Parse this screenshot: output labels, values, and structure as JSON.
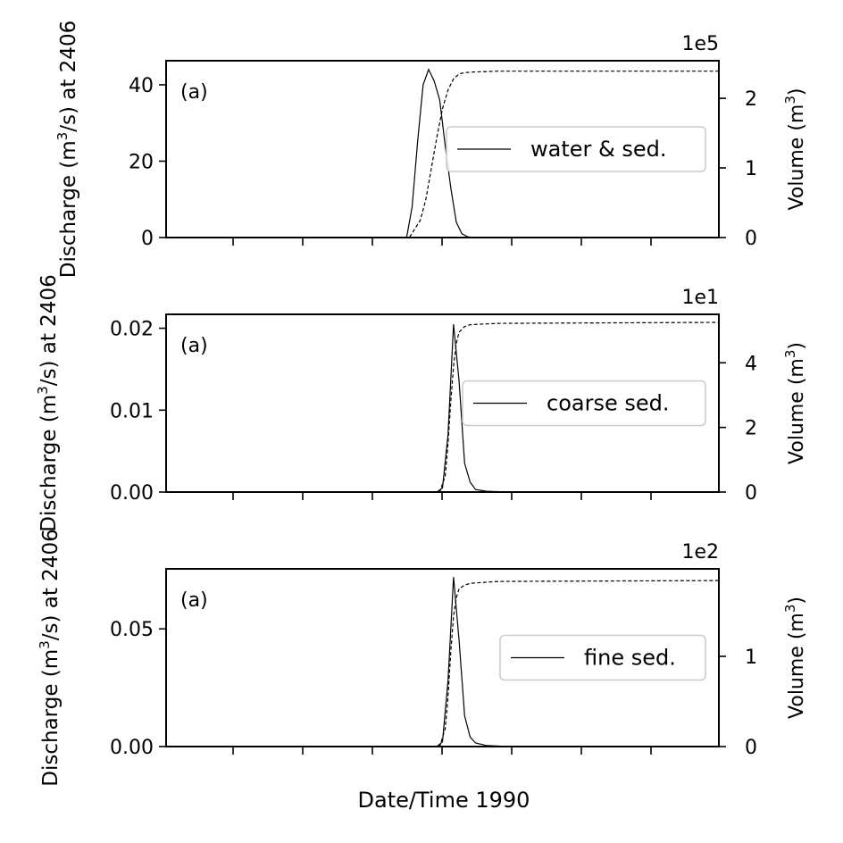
{
  "chart_data": [
    {
      "type": "line",
      "panel_label": "(a)",
      "ylabel": "Discharge (m³/s) at 2406",
      "ylabel_parts": [
        "Discharge (m",
        "3",
        "/s) at 2406"
      ],
      "y2label": "Volume (m³)",
      "y2label_parts": [
        "Volume (m",
        "3",
        ")"
      ],
      "ylim": [
        0,
        46.3
      ],
      "yticks": [
        0,
        20,
        40
      ],
      "ytick_labels": [
        "0",
        "20",
        "40"
      ],
      "y2lim": [
        0,
        2.54
      ],
      "y2ticks": [
        0,
        1,
        2
      ],
      "y2tick_labels": [
        "0",
        "1",
        "2"
      ],
      "y2_offset_label": "1e5",
      "legend": "water & sed.",
      "legend_position": "center-right",
      "series": [
        {
          "name": "water & sed.",
          "axis": "left",
          "style": "solid",
          "x": [
            0,
            0.435,
            0.445,
            0.455,
            0.465,
            0.475,
            0.485,
            0.495,
            0.505,
            0.515,
            0.525,
            0.535,
            0.545,
            0.555,
            0.565,
            1
          ],
          "y": [
            0,
            0,
            8,
            25,
            40,
            44,
            41,
            36,
            24,
            13,
            4,
            1,
            0.2,
            0,
            0,
            0
          ]
        },
        {
          "axis": "right",
          "style": "dashed",
          "x": [
            0,
            0.44,
            0.46,
            0.47,
            0.48,
            0.49,
            0.5,
            0.51,
            0.52,
            0.53,
            0.54,
            0.56,
            0.6,
            1
          ],
          "y": [
            0,
            0,
            0.25,
            0.55,
            1.0,
            1.45,
            1.85,
            2.12,
            2.28,
            2.35,
            2.37,
            2.38,
            2.39,
            2.39
          ]
        }
      ]
    },
    {
      "type": "line",
      "panel_label": "(a)",
      "ylabel": "Discharge (m³/s) at 2406",
      "ylabel_parts": [
        "Discharge (m",
        "3",
        "/s) at 2406"
      ],
      "y2label": "Volume (m³)",
      "y2label_parts": [
        "Volume (m",
        "3",
        ")"
      ],
      "ylim": [
        0,
        0.0217
      ],
      "yticks": [
        0,
        0.01,
        0.02
      ],
      "ytick_labels": [
        "0.00",
        "0.01",
        "0.02"
      ],
      "y2lim": [
        0,
        5.5
      ],
      "y2ticks": [
        0,
        2,
        4
      ],
      "y2tick_labels": [
        "0",
        "2",
        "4"
      ],
      "y2_offset_label": "1e1",
      "legend": "coarse sed.",
      "legend_position": "center-right",
      "series": [
        {
          "name": "coarse sed.",
          "axis": "left",
          "style": "solid",
          "x": [
            0,
            0.49,
            0.5,
            0.51,
            0.52,
            0.53,
            0.54,
            0.55,
            0.56,
            0.58,
            0.62,
            1
          ],
          "y": [
            0,
            0,
            0.0005,
            0.007,
            0.0205,
            0.0135,
            0.0035,
            0.0012,
            0.0003,
            0.0001,
            0,
            0
          ]
        },
        {
          "axis": "right",
          "style": "dashed",
          "x": [
            0,
            0.495,
            0.505,
            0.51,
            0.515,
            0.52,
            0.525,
            0.53,
            0.54,
            0.55,
            0.6,
            1
          ],
          "y": [
            0,
            0,
            0.5,
            1.5,
            2.8,
            3.9,
            4.6,
            4.95,
            5.12,
            5.18,
            5.22,
            5.25
          ]
        }
      ]
    },
    {
      "type": "line",
      "panel_label": "(a)",
      "ylabel": "Discharge (m³/s) at 2406",
      "ylabel_parts": [
        "Discharge (m",
        "3",
        "/s) at 2406"
      ],
      "y2label": "Volume (m³)",
      "y2label_parts": [
        "Volume (m",
        "3",
        ")"
      ],
      "xlabel": "Date/Time 1990",
      "ylim": [
        0,
        0.0755
      ],
      "yticks": [
        0,
        0.05
      ],
      "ytick_labels": [
        "0.00",
        "0.05"
      ],
      "y2lim": [
        0,
        1.97
      ],
      "y2ticks": [
        0,
        1
      ],
      "y2tick_labels": [
        "0",
        "1"
      ],
      "y2_offset_label": "1e2",
      "legend": "fine sed.",
      "legend_position": "center-right",
      "series": [
        {
          "name": "fine sed.",
          "axis": "left",
          "style": "solid",
          "x": [
            0,
            0.49,
            0.5,
            0.51,
            0.52,
            0.53,
            0.54,
            0.55,
            0.56,
            0.58,
            0.62,
            1
          ],
          "y": [
            0,
            0,
            0.002,
            0.028,
            0.072,
            0.045,
            0.013,
            0.004,
            0.0015,
            0.0004,
            0,
            0
          ]
        },
        {
          "axis": "right",
          "style": "dashed",
          "x": [
            0,
            0.495,
            0.505,
            0.51,
            0.515,
            0.52,
            0.525,
            0.53,
            0.54,
            0.55,
            0.6,
            1
          ],
          "y": [
            0,
            0,
            0.2,
            0.55,
            1.05,
            1.45,
            1.65,
            1.75,
            1.79,
            1.81,
            1.83,
            1.84
          ]
        }
      ]
    }
  ]
}
